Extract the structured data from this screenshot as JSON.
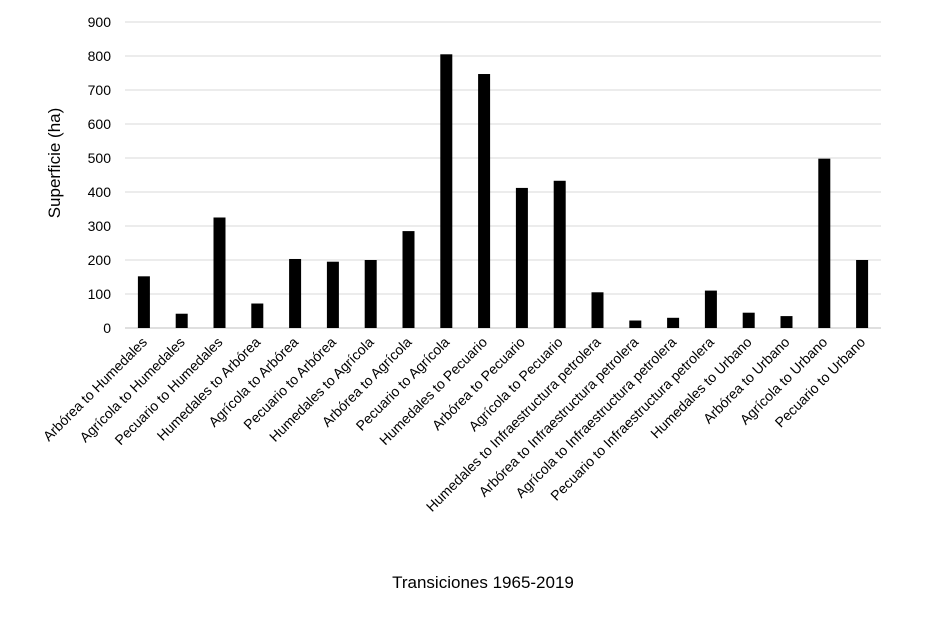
{
  "chart_data": {
    "type": "bar",
    "categories": [
      "Arbórea to Humedales",
      "Agrícola to Humedales",
      "Pecuario to Humedales",
      "Humedales to Arbórea",
      "Agrícola to Arbórea",
      "Pecuario to Arbórea",
      "Humedales to Agrícola",
      "Arbórea to Agrícola",
      "Pecuario to Agrícola",
      "Humedales to Pecuario",
      "Arbórea to Pecuario",
      "Agrícola to Pecuario",
      "Humedales to Infraestructura petrolera",
      "Arbórea to Infraestructura petrolera",
      "Agrícola to Infraestructura petrolera",
      "Pecuario to Infraestructura petrolera",
      "Humedales to Urbano",
      "Arbórea to Urbano",
      "Agrícola to Urbano",
      "Pecuario to Urbano"
    ],
    "values": [
      152,
      42,
      325,
      72,
      203,
      195,
      200,
      285,
      805,
      747,
      412,
      433,
      105,
      22,
      30,
      110,
      45,
      35,
      498,
      200
    ],
    "xlabel": "Transiciones 1965-2019",
    "ylabel": "Superficie (ha)",
    "ylim": [
      0,
      900
    ],
    "yticks": [
      0,
      100,
      200,
      300,
      400,
      500,
      600,
      700,
      800,
      900
    ],
    "grid": true,
    "bar_color": "#000000"
  }
}
